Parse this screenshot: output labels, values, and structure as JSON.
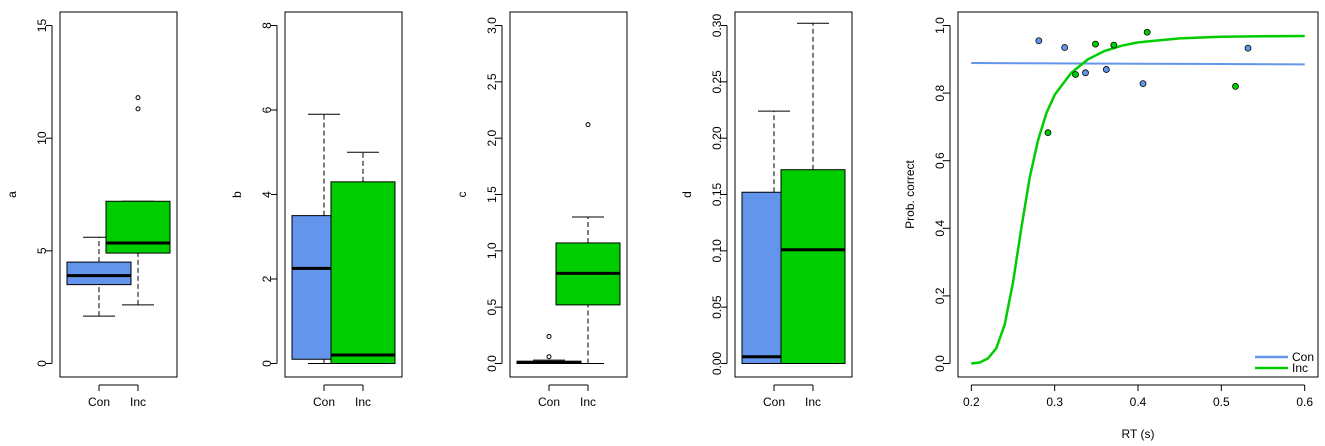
{
  "colors": {
    "con": "#6495ED",
    "inc": "#00CD00"
  },
  "chart_data": [
    {
      "type": "box",
      "ylabel": "a",
      "ylim": [
        0,
        15
      ],
      "yticks": [
        0,
        5,
        10,
        15
      ],
      "categories": [
        "Con",
        "Inc"
      ],
      "boxes": [
        {
          "name": "Con",
          "min": 2.1,
          "q1": 3.5,
          "median": 3.9,
          "q3": 4.5,
          "max": 5.6,
          "outliers": []
        },
        {
          "name": "Inc",
          "min": 2.6,
          "q1": 4.9,
          "median": 5.35,
          "q3": 7.2,
          "max": 7.2,
          "outliers": [
            11.3,
            11.8
          ]
        }
      ]
    },
    {
      "type": "box",
      "ylabel": "b",
      "ylim": [
        0,
        8
      ],
      "yticks": [
        0,
        2,
        4,
        6,
        8
      ],
      "categories": [
        "Con",
        "Inc"
      ],
      "boxes": [
        {
          "name": "Con",
          "min": 0.0,
          "q1": 0.1,
          "median": 2.25,
          "q3": 3.5,
          "max": 5.9,
          "outliers": []
        },
        {
          "name": "Inc",
          "min": 0.0,
          "q1": 0.0,
          "median": 0.2,
          "q3": 4.3,
          "max": 5.0,
          "outliers": []
        }
      ]
    },
    {
      "type": "box",
      "ylabel": "c",
      "ylim": [
        0,
        3
      ],
      "yticks": [
        0.0,
        0.5,
        1.0,
        1.5,
        2.0,
        2.5,
        3.0
      ],
      "yticklabels": [
        "0.0",
        "0.5",
        "1.0",
        "1.5",
        "2.0",
        "2.5",
        "3.0"
      ],
      "categories": [
        "Con",
        "Inc"
      ],
      "boxes": [
        {
          "name": "Con",
          "min": 0.0,
          "q1": 0.0,
          "median": 0.01,
          "q3": 0.02,
          "max": 0.03,
          "outliers": [
            0.06,
            0.24
          ]
        },
        {
          "name": "Inc",
          "min": 0.0,
          "q1": 0.52,
          "median": 0.8,
          "q3": 1.07,
          "max": 1.3,
          "outliers": [
            2.12
          ]
        }
      ]
    },
    {
      "type": "box",
      "ylabel": "d",
      "ylim": [
        0,
        0.3
      ],
      "yticks": [
        0.0,
        0.05,
        0.1,
        0.15,
        0.2,
        0.25,
        0.3
      ],
      "yticklabels": [
        "0.00",
        "0.05",
        "0.10",
        "0.15",
        "0.20",
        "0.25",
        "0.30"
      ],
      "categories": [
        "Con",
        "Inc"
      ],
      "boxes": [
        {
          "name": "Con",
          "min": 0.0,
          "q1": 0.0,
          "median": 0.006,
          "q3": 0.152,
          "max": 0.224,
          "outliers": []
        },
        {
          "name": "Inc",
          "min": 0.0,
          "q1": 0.0,
          "median": 0.101,
          "q3": 0.172,
          "max": 0.302,
          "outliers": []
        }
      ]
    },
    {
      "type": "scatter",
      "xlabel": "RT (s)",
      "ylabel": "Prob. correct",
      "xlim": [
        0.2,
        0.6
      ],
      "ylim": [
        0,
        1
      ],
      "xticks": [
        0.2,
        0.3,
        0.4,
        0.5,
        0.6
      ],
      "xticklabels": [
        "0.2",
        "0.3",
        "0.4",
        "0.5",
        "0.6"
      ],
      "yticks": [
        0.0,
        0.2,
        0.4,
        0.6,
        0.8,
        1.0
      ],
      "yticklabels": [
        "0.0",
        "0.2",
        "0.4",
        "0.6",
        "0.8",
        "1.0"
      ],
      "legend": {
        "position": "bottom-right"
      },
      "series": [
        {
          "name": "Con",
          "points": [
            [
              0.281,
              0.955
            ],
            [
              0.312,
              0.935
            ],
            [
              0.337,
              0.86
            ],
            [
              0.362,
              0.87
            ],
            [
              0.406,
              0.828
            ],
            [
              0.532,
              0.933
            ]
          ],
          "fit": [
            [
              0.2,
              0.889
            ],
            [
              0.3,
              0.888
            ],
            [
              0.4,
              0.887
            ],
            [
              0.5,
              0.886
            ],
            [
              0.6,
              0.885
            ]
          ]
        },
        {
          "name": "Inc",
          "points": [
            [
              0.292,
              0.683
            ],
            [
              0.325,
              0.855
            ],
            [
              0.349,
              0.945
            ],
            [
              0.371,
              0.942
            ],
            [
              0.411,
              0.98
            ],
            [
              0.517,
              0.82
            ]
          ],
          "fit": [
            [
              0.2,
              0.0
            ],
            [
              0.21,
              0.003
            ],
            [
              0.22,
              0.015
            ],
            [
              0.23,
              0.045
            ],
            [
              0.24,
              0.115
            ],
            [
              0.25,
              0.24
            ],
            [
              0.26,
              0.4
            ],
            [
              0.27,
              0.55
            ],
            [
              0.28,
              0.66
            ],
            [
              0.29,
              0.74
            ],
            [
              0.3,
              0.795
            ],
            [
              0.32,
              0.86
            ],
            [
              0.34,
              0.9
            ],
            [
              0.36,
              0.925
            ],
            [
              0.38,
              0.94
            ],
            [
              0.4,
              0.95
            ],
            [
              0.45,
              0.962
            ],
            [
              0.5,
              0.967
            ],
            [
              0.55,
              0.968
            ],
            [
              0.6,
              0.969
            ]
          ]
        }
      ]
    }
  ]
}
